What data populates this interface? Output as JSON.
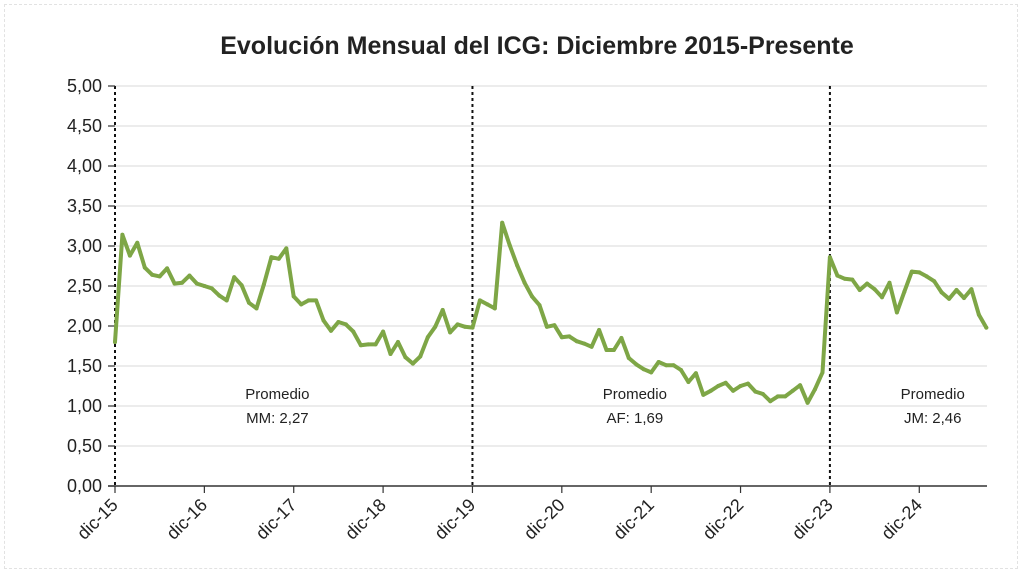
{
  "chart_data": {
    "type": "line",
    "title": "Evolución Mensual del ICG: Diciembre 2015-Presente",
    "xlabel": "",
    "ylabel": "",
    "ylim": [
      0,
      5
    ],
    "yticks": [
      "0,00",
      "0,50",
      "1,00",
      "1,50",
      "2,00",
      "2,50",
      "3,00",
      "3,50",
      "4,00",
      "4,50",
      "5,00"
    ],
    "ytick_values": [
      0,
      0.5,
      1,
      1.5,
      2,
      2.5,
      3,
      3.5,
      4,
      4.5,
      5
    ],
    "xticks": [
      "dic-15",
      "dic-16",
      "dic-17",
      "dic-18",
      "dic-19",
      "dic-20",
      "dic-21",
      "dic-22",
      "dic-23",
      "dic-24"
    ],
    "xtick_months": [
      0,
      12,
      24,
      36,
      48,
      60,
      72,
      84,
      96,
      108
    ],
    "x_range_months": [
      0,
      117
    ],
    "grid": true,
    "line_color": "#7ea646",
    "series": [
      {
        "name": "ICG",
        "values": [
          1.8,
          3.14,
          2.88,
          3.04,
          2.73,
          2.64,
          2.62,
          2.72,
          2.53,
          2.54,
          2.63,
          2.53,
          2.5,
          2.47,
          2.38,
          2.32,
          2.61,
          2.51,
          2.29,
          2.22,
          2.52,
          2.86,
          2.84,
          2.97,
          2.37,
          2.27,
          2.32,
          2.32,
          2.07,
          1.94,
          2.05,
          2.02,
          1.93,
          1.76,
          1.77,
          1.77,
          1.93,
          1.65,
          1.8,
          1.61,
          1.53,
          1.62,
          1.86,
          1.99,
          2.2,
          1.92,
          2.02,
          1.99,
          1.98,
          2.32,
          2.27,
          2.22,
          3.29,
          3.01,
          2.76,
          2.54,
          2.37,
          2.26,
          1.99,
          2.01,
          1.86,
          1.87,
          1.81,
          1.78,
          1.74,
          1.95,
          1.7,
          1.7,
          1.85,
          1.6,
          1.52,
          1.46,
          1.42,
          1.55,
          1.51,
          1.51,
          1.45,
          1.3,
          1.41,
          1.14,
          1.19,
          1.25,
          1.29,
          1.19,
          1.25,
          1.28,
          1.18,
          1.15,
          1.06,
          1.12,
          1.12,
          1.19,
          1.26,
          1.04,
          1.21,
          1.42,
          2.86,
          2.63,
          2.59,
          2.58,
          2.45,
          2.53,
          2.46,
          2.36,
          2.54,
          2.17,
          2.43,
          2.68,
          2.67,
          2.62,
          2.56,
          2.42,
          2.34,
          2.45,
          2.35,
          2.46,
          2.14,
          1.98
        ]
      }
    ],
    "period_dividers_months": [
      0,
      48,
      96
    ],
    "annotations": [
      {
        "line1": "Promedio",
        "line2": "MM: 2,27",
        "center_month": 21
      },
      {
        "line1": "Promedio",
        "line2": "AF: 1,69",
        "center_month": 69
      },
      {
        "line1": "Promedio",
        "line2": "JM: 2,46",
        "center_month": 109
      }
    ]
  }
}
